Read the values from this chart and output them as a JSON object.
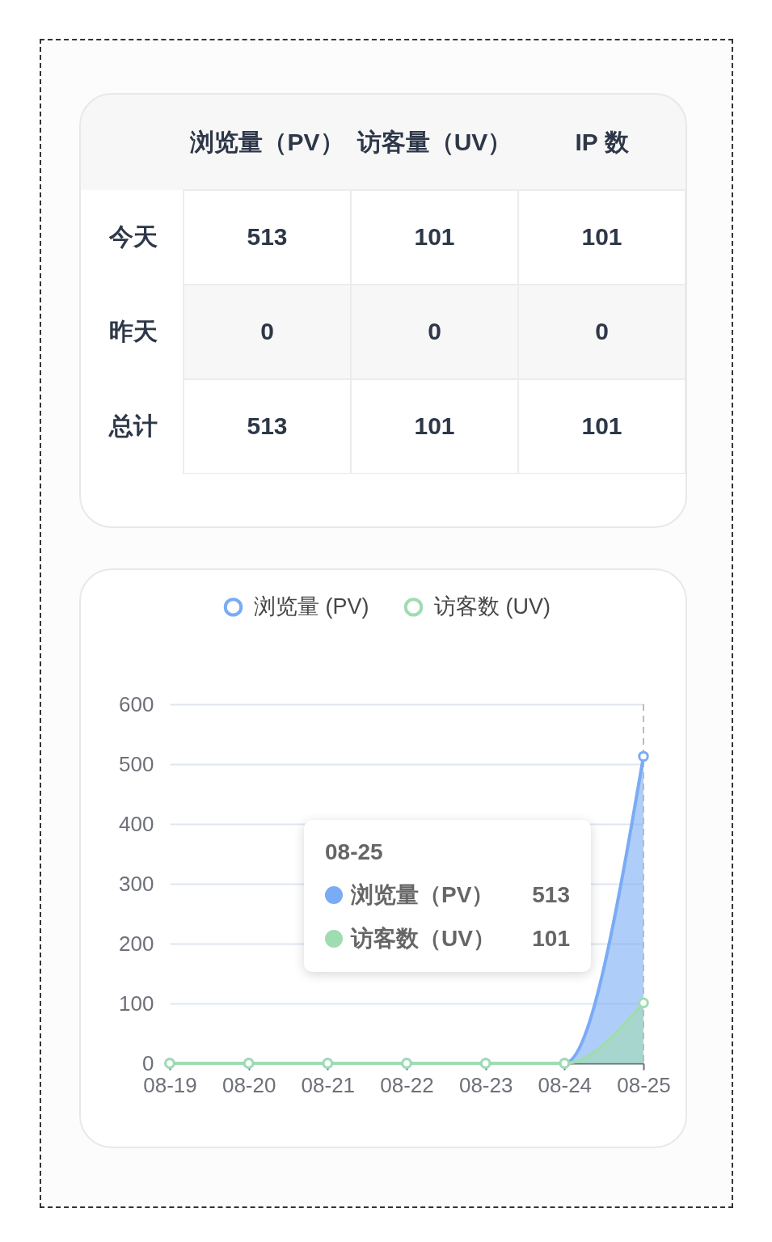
{
  "chart_data": [
    {
      "type": "heatmap",
      "categories": [
        "浏览量（PV）",
        "访客量（UV）",
        "IP 数"
      ],
      "y_categories": [
        "今天",
        "昨天",
        "总计"
      ],
      "cells": [
        [
          513,
          101,
          101
        ],
        [
          0,
          0,
          0
        ],
        [
          513,
          101,
          101
        ]
      ],
      "data_labels": true
    },
    {
      "type": "area",
      "categories": [
        "08-19",
        "08-20",
        "08-21",
        "08-22",
        "08-23",
        "08-24",
        "08-25"
      ],
      "series": [
        {
          "name": "浏览量 (PV)",
          "color": "#7aabf5",
          "values": [
            0,
            0,
            0,
            0,
            0,
            0,
            513
          ]
        },
        {
          "name": "访客数 (UV)",
          "color": "#a0dcb1",
          "values": [
            0,
            0,
            0,
            0,
            0,
            0,
            101
          ]
        }
      ],
      "ylim": [
        0,
        600
      ],
      "yticks": [
        0,
        100,
        200,
        300,
        400,
        500,
        600
      ],
      "grid": "y",
      "legend": "top",
      "marker": "circle",
      "ref_lines": [
        {
          "axis": "x",
          "value": "08-25",
          "line_style": "dashed",
          "color": "#bbbbbb"
        }
      ],
      "annotations": [
        "08-25",
        "浏览量（PV）",
        "513",
        "访客数（UV）",
        "101"
      ]
    }
  ]
}
